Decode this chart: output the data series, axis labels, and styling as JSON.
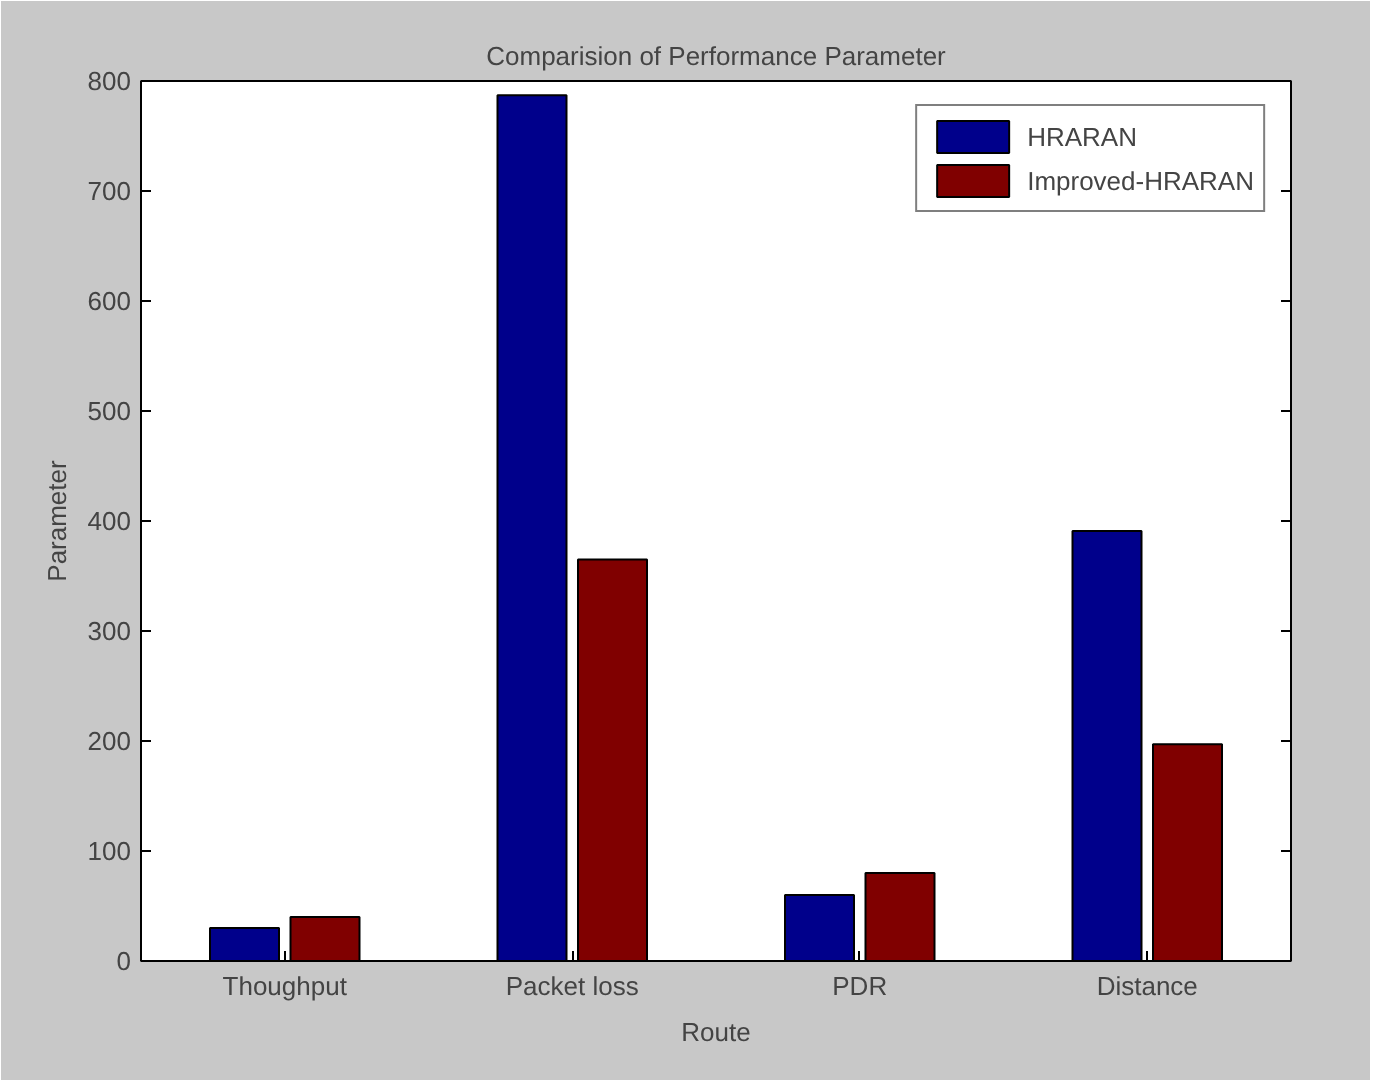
{
  "chart_data": {
    "type": "bar",
    "title": "Comparision of Performance Parameter",
    "xlabel": "Route",
    "ylabel": "Parameter",
    "categories": [
      "Thoughput",
      "Packet loss",
      "PDR",
      "Distance"
    ],
    "series": [
      {
        "name": "HRARAN",
        "color": "#00008b",
        "values": [
          30,
          787,
          60,
          391
        ]
      },
      {
        "name": "Improved-HRARAN",
        "color": "#800000",
        "values": [
          40,
          365,
          80,
          197
        ]
      }
    ],
    "ylim": [
      0,
      800
    ],
    "yticks": [
      0,
      100,
      200,
      300,
      400,
      500,
      600,
      700,
      800
    ],
    "grid": false,
    "legend": "top right"
  }
}
